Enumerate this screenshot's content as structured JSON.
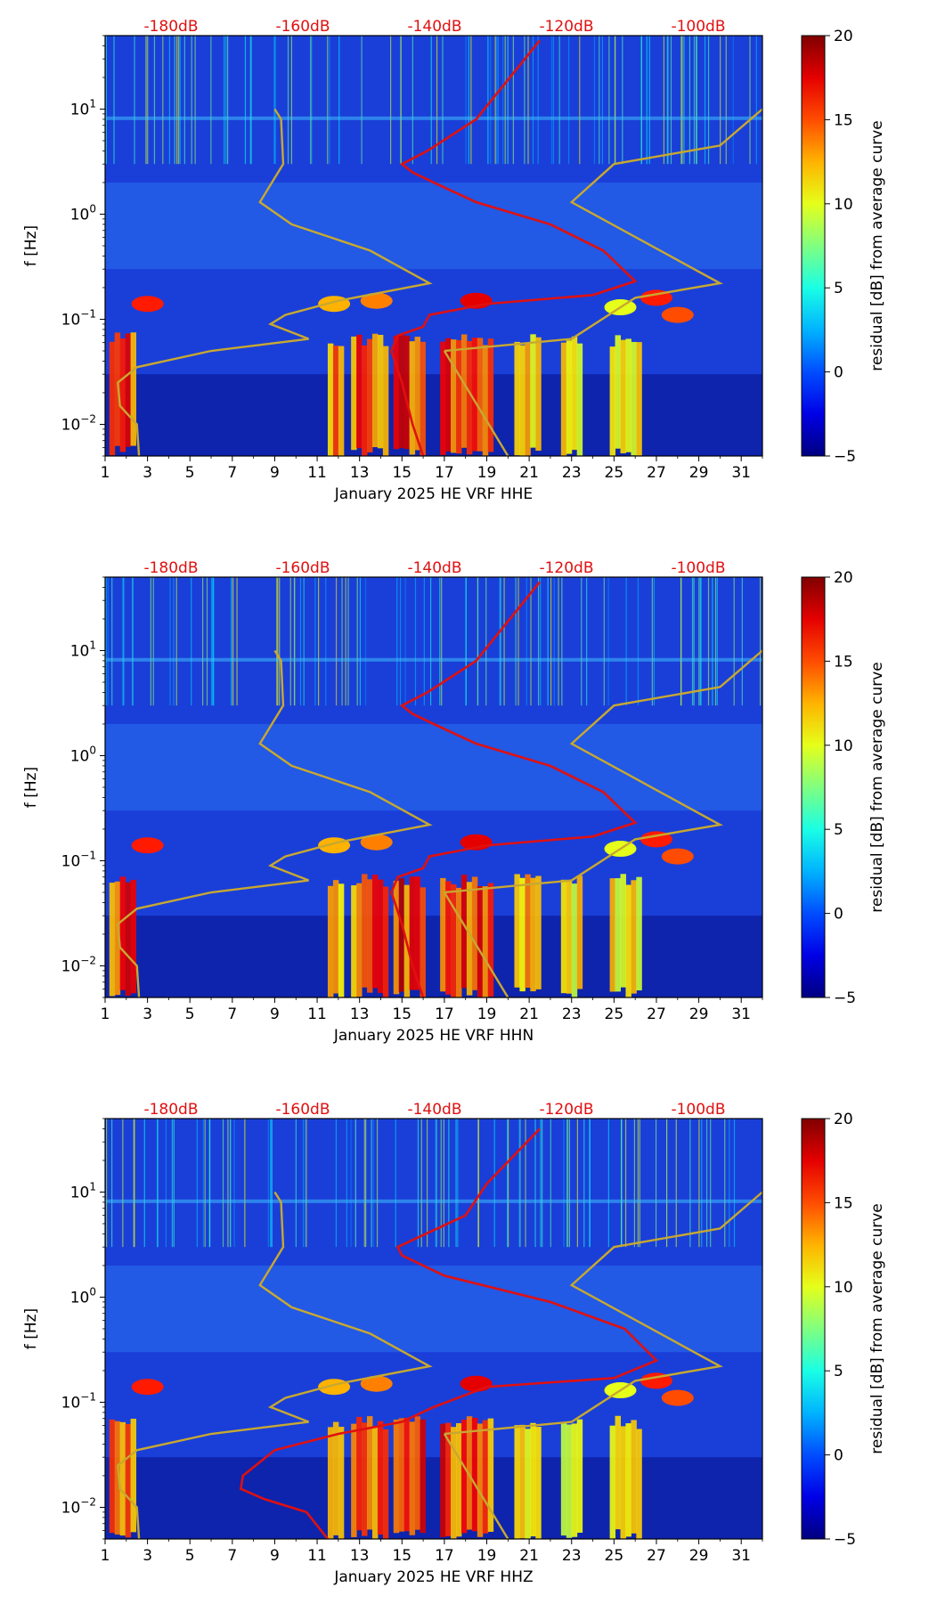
{
  "chart_data": [
    {
      "type": "heatmap",
      "xlabel": "January 2025 HE VRF  HHE",
      "ylabel": "f [Hz]",
      "x_ticks": [
        "1",
        "3",
        "5",
        "7",
        "9",
        "11",
        "13",
        "15",
        "17",
        "19",
        "21",
        "23",
        "25",
        "27",
        "29",
        "31"
      ],
      "x_range": [
        1,
        32
      ],
      "y_range_hz": [
        0.005,
        50
      ],
      "y_ticks": [
        {
          "base": "10",
          "exp": "−2"
        },
        {
          "base": "10",
          "exp": "−1"
        },
        {
          "base": "10",
          "exp": "0"
        },
        {
          "base": "10",
          "exp": "1"
        }
      ],
      "top_db_labels": [
        "-180dB",
        "-160dB",
        "-140dB",
        "-120dB",
        "-100dB"
      ],
      "colorbar": {
        "label": "residual [dB] from average curve",
        "min": -5,
        "max": 20,
        "ticks": [
          "−5",
          "0",
          "5",
          "10",
          "15",
          "20"
        ]
      }
    },
    {
      "type": "heatmap",
      "xlabel": "January 2025 HE VRF  HHN",
      "ylabel": "f [Hz]",
      "x_ticks": [
        "1",
        "3",
        "5",
        "7",
        "9",
        "11",
        "13",
        "15",
        "17",
        "19",
        "21",
        "23",
        "25",
        "27",
        "29",
        "31"
      ],
      "x_range": [
        1,
        32
      ],
      "y_range_hz": [
        0.005,
        50
      ],
      "y_ticks": [
        {
          "base": "10",
          "exp": "−2"
        },
        {
          "base": "10",
          "exp": "−1"
        },
        {
          "base": "10",
          "exp": "0"
        },
        {
          "base": "10",
          "exp": "1"
        }
      ],
      "top_db_labels": [
        "-180dB",
        "-160dB",
        "-140dB",
        "-120dB",
        "-100dB"
      ],
      "colorbar": {
        "label": "residual [dB] from average curve",
        "min": -5,
        "max": 20,
        "ticks": [
          "−5",
          "0",
          "5",
          "10",
          "15",
          "20"
        ]
      }
    },
    {
      "type": "heatmap",
      "xlabel": "January 2025 HE VRF  HHZ",
      "ylabel": "f [Hz]",
      "x_ticks": [
        "1",
        "3",
        "5",
        "7",
        "9",
        "11",
        "13",
        "15",
        "17",
        "19",
        "21",
        "23",
        "25",
        "27",
        "29",
        "31"
      ],
      "x_range": [
        1,
        32
      ],
      "y_range_hz": [
        0.005,
        50
      ],
      "y_ticks": [
        {
          "base": "10",
          "exp": "−2"
        },
        {
          "base": "10",
          "exp": "−1"
        },
        {
          "base": "10",
          "exp": "0"
        },
        {
          "base": "10",
          "exp": "1"
        }
      ],
      "top_db_labels": [
        "-180dB",
        "-160dB",
        "-140dB",
        "-120dB",
        "-100dB"
      ],
      "colorbar": {
        "label": "residual [dB] from average curve",
        "min": -5,
        "max": 20,
        "ticks": [
          "−5",
          "0",
          "5",
          "10",
          "15",
          "20"
        ]
      }
    }
  ]
}
